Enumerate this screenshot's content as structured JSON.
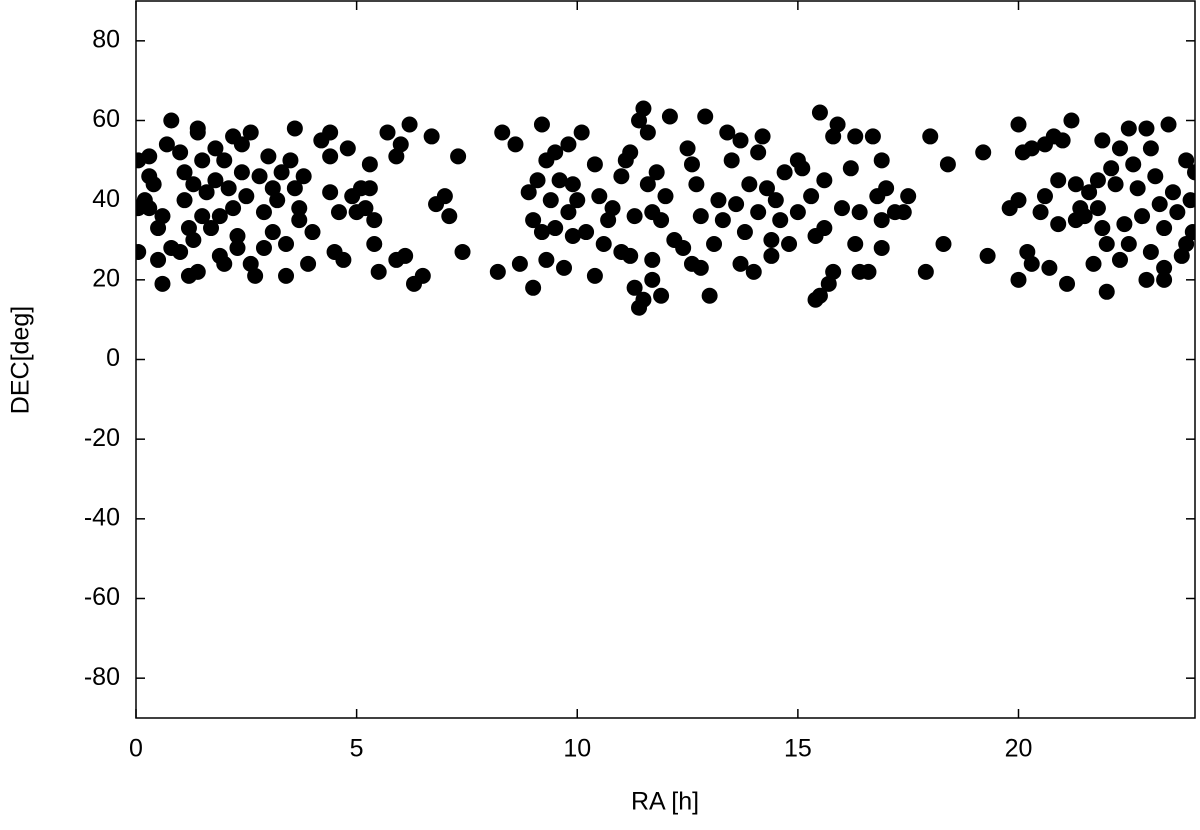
{
  "chart_data": {
    "type": "scatter",
    "x_label": "RA [h]",
    "y_label": "DEC[deg]",
    "color": "#000000",
    "xlim": [
      0,
      24
    ],
    "xticks": [
      0,
      5,
      10,
      15,
      20
    ],
    "ylim": [
      -90,
      90
    ],
    "yticks": [
      -80,
      -60,
      -40,
      -20,
      0,
      20,
      40,
      60,
      80
    ],
    "x": [
      0.05,
      0.05,
      0.05,
      0.2,
      0.3,
      0.3,
      0.3,
      0.4,
      0.5,
      0.5,
      0.6,
      0.6,
      0.7,
      0.8,
      0.8,
      1.0,
      1.0,
      1.1,
      1.1,
      1.2,
      1.3,
      1.2,
      1.3,
      1.4,
      1.4,
      1.4,
      1.5,
      1.5,
      1.6,
      1.7,
      1.8,
      1.8,
      1.9,
      1.9,
      2.0,
      2.0,
      2.1,
      2.2,
      2.2,
      2.3,
      2.3,
      2.4,
      2.4,
      2.5,
      2.6,
      2.6,
      2.7,
      2.8,
      2.9,
      2.9,
      3.0,
      3.1,
      3.1,
      3.2,
      3.3,
      3.4,
      3.4,
      3.5,
      3.6,
      3.6,
      3.7,
      3.7,
      3.8,
      3.9,
      4.0,
      4.2,
      4.4,
      4.4,
      4.4,
      4.5,
      4.6,
      4.7,
      4.8,
      4.9,
      5.0,
      5.1,
      5.2,
      5.3,
      5.3,
      5.4,
      5.4,
      5.5,
      5.7,
      5.9,
      5.9,
      6.0,
      6.1,
      6.2,
      6.3,
      6.5,
      6.7,
      6.8,
      7.0,
      7.1,
      7.3,
      7.4,
      8.2,
      8.3,
      8.6,
      8.7,
      8.9,
      9.0,
      9.0,
      9.1,
      9.2,
      9.2,
      9.3,
      9.3,
      9.4,
      9.5,
      9.5,
      9.6,
      9.7,
      9.8,
      9.8,
      9.9,
      9.9,
      10.0,
      10.1,
      10.2,
      10.4,
      10.4,
      10.5,
      10.6,
      10.7,
      10.8,
      11.0,
      11.0,
      11.1,
      11.2,
      11.2,
      11.3,
      11.3,
      11.4,
      11.4,
      11.5,
      11.5,
      11.6,
      11.6,
      11.7,
      11.7,
      11.7,
      11.8,
      11.9,
      11.9,
      12.0,
      12.1,
      12.2,
      12.4,
      12.5,
      12.6,
      12.6,
      12.7,
      12.8,
      12.8,
      12.9,
      13.0,
      13.1,
      13.2,
      13.3,
      13.4,
      13.5,
      13.6,
      13.7,
      13.7,
      13.8,
      13.9,
      14.0,
      14.1,
      14.1,
      14.2,
      14.3,
      14.4,
      14.4,
      14.5,
      14.6,
      14.7,
      14.8,
      15.0,
      15.0,
      15.1,
      15.3,
      15.4,
      15.4,
      15.5,
      15.5,
      15.6,
      15.6,
      15.7,
      15.8,
      15.8,
      15.9,
      16.0,
      16.2,
      16.3,
      16.3,
      16.4,
      16.4,
      16.6,
      16.7,
      16.8,
      16.9,
      16.9,
      16.9,
      17.0,
      17.2,
      17.4,
      17.5,
      17.9,
      18.0,
      18.3,
      18.4,
      19.2,
      19.3,
      19.8,
      20.0,
      20.0,
      20.0,
      20.1,
      20.2,
      20.3,
      20.3,
      20.5,
      20.6,
      20.6,
      20.7,
      20.8,
      20.9,
      20.9,
      21.0,
      21.1,
      21.2,
      21.3,
      21.3,
      21.4,
      21.5,
      21.6,
      21.7,
      21.8,
      21.8,
      21.9,
      21.9,
      22.0,
      22.0,
      22.1,
      22.2,
      22.3,
      22.3,
      22.4,
      22.5,
      22.5,
      22.6,
      22.7,
      22.8,
      22.9,
      22.9,
      23.0,
      23.0,
      23.1,
      23.2,
      23.3,
      23.3,
      23.3,
      23.4,
      23.5,
      23.6,
      23.7,
      23.8,
      23.8,
      23.9,
      24.0,
      23.95
    ],
    "values": [
      50,
      38,
      27,
      40,
      51,
      46,
      38,
      44,
      33,
      25,
      19,
      36,
      54,
      60,
      28,
      52,
      27,
      47,
      40,
      33,
      30,
      21,
      44,
      57,
      58,
      22,
      36,
      50,
      42,
      33,
      53,
      45,
      36,
      26,
      50,
      24,
      43,
      56,
      38,
      28,
      31,
      54,
      47,
      41,
      57,
      24,
      21,
      46,
      37,
      28,
      51,
      43,
      32,
      40,
      47,
      29,
      21,
      50,
      58,
      43,
      38,
      35,
      46,
      24,
      32,
      55,
      57,
      51,
      42,
      27,
      37,
      25,
      53,
      41,
      37,
      43,
      38,
      43,
      49,
      35,
      29,
      22,
      57,
      51,
      25,
      54,
      26,
      59,
      19,
      21,
      56,
      39,
      41,
      36,
      51,
      27,
      22,
      57,
      54,
      24,
      42,
      35,
      18,
      45,
      59,
      32,
      50,
      25,
      40,
      52,
      33,
      45,
      23,
      37,
      54,
      44,
      31,
      40,
      57,
      32,
      49,
      21,
      41,
      29,
      35,
      38,
      46,
      27,
      50,
      52,
      26,
      18,
      36,
      13,
      60,
      63,
      15,
      44,
      57,
      37,
      25,
      20,
      47,
      16,
      35,
      41,
      61,
      30,
      28,
      53,
      49,
      24,
      44,
      23,
      36,
      61,
      16,
      29,
      40,
      35,
      57,
      50,
      39,
      55,
      24,
      32,
      44,
      22,
      52,
      37,
      56,
      43,
      30,
      26,
      40,
      35,
      47,
      29,
      50,
      37,
      48,
      41,
      31,
      15,
      62,
      16,
      45,
      33,
      19,
      22,
      56,
      59,
      38,
      48,
      56,
      29,
      37,
      22,
      22,
      56,
      41,
      35,
      28,
      50,
      43,
      37,
      37,
      41,
      22,
      56,
      29,
      49,
      52,
      26,
      38,
      59,
      40,
      20,
      52,
      27,
      53,
      24,
      37,
      54,
      41,
      23,
      56,
      45,
      34,
      55,
      19,
      60,
      44,
      35,
      38,
      36,
      42,
      24,
      45,
      38,
      55,
      33,
      29,
      17,
      48,
      44,
      53,
      25,
      34,
      29,
      58,
      49,
      43,
      36,
      20,
      58,
      27,
      53,
      46,
      39,
      23,
      33,
      20,
      59,
      42,
      37,
      26,
      29,
      50,
      40,
      47,
      32
    ]
  }
}
